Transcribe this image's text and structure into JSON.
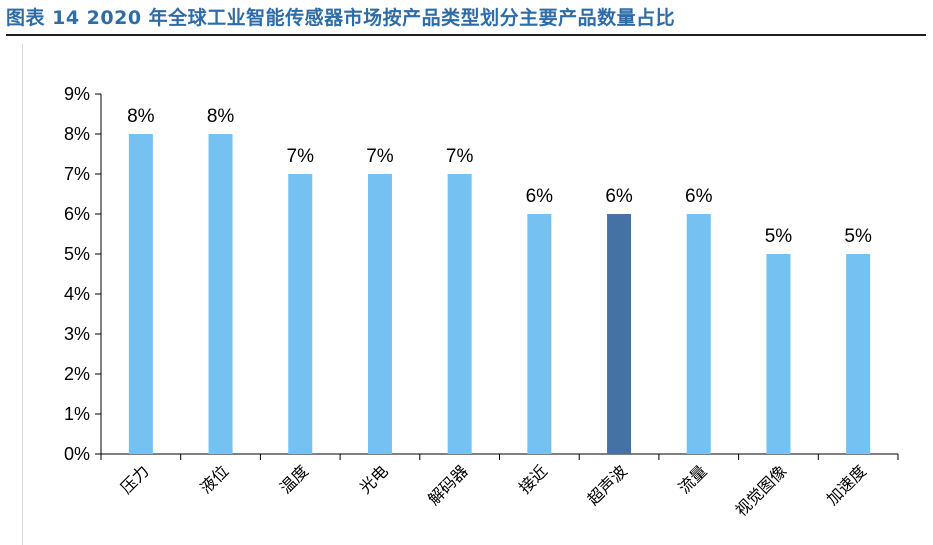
{
  "page": {
    "title": "图表 14 2020 年全球工业智能传感器市场按产品类型划分主要产品数量占比"
  },
  "chart_data": {
    "type": "bar",
    "title": "",
    "xlabel": "",
    "ylabel": "",
    "ylim": [
      0,
      9
    ],
    "yticks": [
      "0%",
      "1%",
      "2%",
      "3%",
      "4%",
      "5%",
      "6%",
      "7%",
      "8%",
      "9%"
    ],
    "categories": [
      "压力",
      "液位",
      "温度",
      "光电",
      "解码器",
      "接近",
      "超声波",
      "流量",
      "视觉图像",
      "加速度"
    ],
    "values": [
      8,
      8,
      7,
      7,
      7,
      6,
      6,
      6,
      5,
      5
    ],
    "data_labels": [
      "8%",
      "8%",
      "7%",
      "7%",
      "7%",
      "6%",
      "6%",
      "6%",
      "5%",
      "5%"
    ],
    "highlight_index": 6,
    "colors": {
      "bar": "#74c1f2",
      "highlight": "#4472a4",
      "axis": "#000000"
    },
    "grid": false,
    "legend": "none"
  }
}
